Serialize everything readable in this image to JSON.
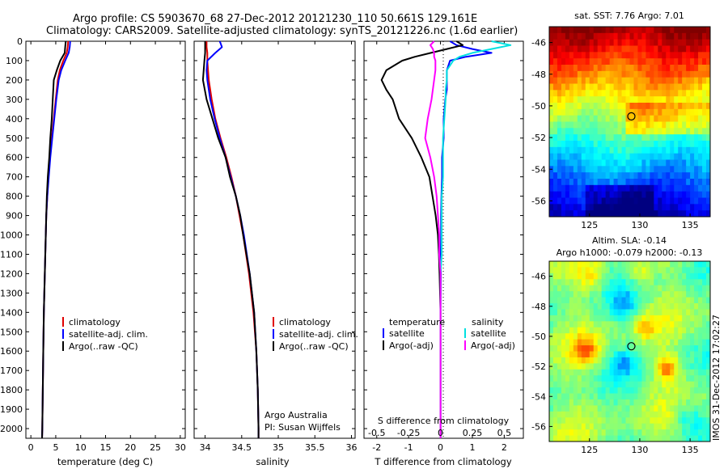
{
  "title_line1": "Argo profile: CS 5903670_68 27-Dec-2012 20121230_110 50.661S 129.161E",
  "title_line2": "Climatology: CARS2009. Satellite-adjusted climatology: synTS_20121226.nc (1.6d earlier)",
  "colors": {
    "climatology": "#e00000",
    "satellite": "#0000ff",
    "argo": "#000000",
    "sal_satellite": "#00e0e0",
    "sal_argo": "#ff00ff"
  },
  "chart_data": [
    {
      "type": "line",
      "panel": "temperature",
      "xlabel": "temperature (deg C)",
      "ylim": [
        2050,
        0
      ],
      "xlim": [
        -1,
        31
      ],
      "xticks": [
        0,
        5,
        10,
        15,
        20,
        25,
        30
      ],
      "yticks": [
        0,
        100,
        200,
        300,
        400,
        500,
        600,
        700,
        800,
        900,
        1000,
        1100,
        1200,
        1300,
        1400,
        1500,
        1600,
        1700,
        1800,
        1900,
        2000
      ],
      "legend": [
        "climatology",
        "satellite-adj. clim.",
        "Argo(..raw -QC)"
      ],
      "depth": [
        0,
        30,
        60,
        100,
        150,
        200,
        300,
        400,
        500,
        600,
        700,
        800,
        900,
        1000,
        1200,
        1400,
        1600,
        1800,
        2000,
        2050
      ],
      "series": [
        {
          "name": "climatology",
          "color_key": "climatology",
          "values": [
            7.5,
            7.4,
            7.2,
            6.5,
            5.8,
            5.4,
            5.0,
            4.6,
            4.2,
            3.8,
            3.5,
            3.3,
            3.1,
            3.0,
            2.8,
            2.6,
            2.5,
            2.4,
            2.3,
            2.25
          ]
        },
        {
          "name": "satellite-adj. clim.",
          "color_key": "satellite",
          "values": [
            7.9,
            7.8,
            7.6,
            6.9,
            6.1,
            5.6,
            5.1,
            4.7,
            4.3,
            3.9,
            3.6,
            3.3,
            3.1,
            3.0,
            2.8,
            2.6,
            2.5,
            2.4,
            2.3,
            2.25
          ]
        },
        {
          "name": "Argo(..raw -QC)",
          "color_key": "argo",
          "values": [
            7.0,
            6.9,
            6.8,
            5.9,
            5.2,
            4.6,
            4.4,
            4.2,
            3.9,
            3.7,
            3.4,
            3.2,
            3.1,
            3.0,
            2.8,
            2.6,
            2.5,
            2.4,
            2.3,
            2.25
          ]
        }
      ]
    },
    {
      "type": "line",
      "panel": "salinity",
      "xlabel": "salinity",
      "ylim": [
        2050,
        0
      ],
      "xlim": [
        33.85,
        36.05
      ],
      "xticks": [
        34,
        34.5,
        35,
        35.5,
        36
      ],
      "xticklabels": [
        "34",
        "34.5",
        "35",
        "35.5",
        "36"
      ],
      "legend": [
        "climatology",
        "satellite-adj. clim.",
        "Argo(..raw -QC)"
      ],
      "annotation1": "Argo Australia",
      "annotation2": "PI: Susan Wijffels",
      "depth": [
        0,
        30,
        60,
        100,
        150,
        200,
        300,
        400,
        500,
        600,
        700,
        800,
        900,
        1000,
        1200,
        1400,
        1600,
        1800,
        2000,
        2050
      ],
      "series": [
        {
          "name": "climatology",
          "color_key": "climatology",
          "values": [
            34.02,
            34.02,
            34.03,
            34.03,
            34.04,
            34.05,
            34.09,
            34.14,
            34.21,
            34.29,
            34.36,
            34.42,
            34.47,
            34.52,
            34.6,
            34.66,
            34.7,
            34.72,
            34.73,
            34.73
          ]
        },
        {
          "name": "satellite-adj. clim.",
          "color_key": "satellite",
          "values": [
            34.2,
            34.23,
            34.14,
            34.03,
            34.02,
            34.03,
            34.07,
            34.13,
            34.2,
            34.28,
            34.35,
            34.42,
            34.48,
            34.53,
            34.61,
            34.67,
            34.7,
            34.72,
            34.73,
            34.73
          ]
        },
        {
          "name": "Argo(..raw -QC)",
          "color_key": "argo",
          "values": [
            34.0,
            34.0,
            34.0,
            33.99,
            33.98,
            33.97,
            34.02,
            34.1,
            34.18,
            34.28,
            34.34,
            34.42,
            34.48,
            34.52,
            34.61,
            34.67,
            34.7,
            34.72,
            34.73,
            34.73
          ]
        }
      ]
    },
    {
      "type": "line",
      "panel": "difference",
      "xlabel_bottom": "T difference from climatology",
      "xlabel_top": "S difference from climatology",
      "xlim": [
        -2.4,
        2.6
      ],
      "xticks_bottom": [
        -2,
        -1,
        0,
        1,
        2
      ],
      "xticks_top": [
        -0.5,
        -0.25,
        0,
        0.25,
        0.5
      ],
      "xticks_top_labels": [
        "-0.5",
        "-0.25",
        "0",
        "0.25",
        "0.5"
      ],
      "legend_left_title": "temperature",
      "legend_right_title": "salinity",
      "legend_left": [
        "satellite",
        "Argo(-adj)"
      ],
      "legend_right": [
        "satellite",
        "Argo(-adj)"
      ],
      "depth": [
        0,
        20,
        40,
        60,
        80,
        100,
        150,
        200,
        250,
        300,
        400,
        500,
        600,
        700,
        800,
        900,
        1000,
        1100,
        1200,
        1400,
        1600,
        1800,
        2000,
        2050
      ],
      "series": [
        {
          "name": "T satellite",
          "color_key": "satellite",
          "values": [
            0.3,
            0.5,
            1.0,
            1.6,
            0.8,
            0.3,
            0.2,
            0.2,
            0.2,
            0.15,
            0.1,
            0.1,
            0.05,
            0.05,
            0.03,
            0.02,
            0.02,
            0.01,
            0.01,
            0.0,
            0.0,
            0.0,
            0.0,
            0.0
          ]
        },
        {
          "name": "T Argo(-adj)",
          "color_key": "argo",
          "values": [
            0.5,
            0.7,
            0.2,
            -0.3,
            -0.8,
            -1.2,
            -1.7,
            -1.85,
            -1.7,
            -1.5,
            -1.3,
            -0.9,
            -0.6,
            -0.35,
            -0.25,
            -0.15,
            -0.08,
            -0.05,
            -0.03,
            0.0,
            0.0,
            0.0,
            0.0,
            0.0
          ]
        },
        {
          "name": "S satellite",
          "color_key": "sal_satellite",
          "values": [
            0.4,
            0.55,
            0.4,
            0.25,
            0.15,
            0.1,
            0.05,
            0.05,
            0.04,
            0.04,
            0.03,
            0.02,
            0.02,
            0.02,
            0.01,
            0.01,
            0.01,
            0.01,
            0.0,
            0.0,
            0.0,
            0.0,
            0.0,
            0.0
          ]
        },
        {
          "name": "S Argo(-adj)",
          "color_key": "sal_argo",
          "values": [
            -0.05,
            -0.08,
            -0.06,
            -0.05,
            -0.05,
            -0.04,
            -0.04,
            -0.05,
            -0.06,
            -0.07,
            -0.1,
            -0.12,
            -0.08,
            -0.05,
            -0.03,
            -0.02,
            -0.01,
            -0.01,
            0.0,
            0.0,
            0.0,
            0.0,
            0.0,
            0.0
          ]
        }
      ]
    },
    {
      "type": "heatmap",
      "panel": "sst_map",
      "title": "sat. SST: 7.76  Argo: 7.01",
      "xlim": [
        121,
        137
      ],
      "ylim": [
        -57,
        -45
      ],
      "xticks": [
        125,
        130,
        135
      ],
      "yticks": [
        -46,
        -48,
        -50,
        -52,
        -54,
        -56
      ],
      "colorscale": "jet",
      "marker": [
        129.161,
        -50.661
      ]
    },
    {
      "type": "heatmap",
      "panel": "sla_map",
      "title_line1": "Altim. SLA: -0.14",
      "title_line2": "Argo h1000: -0.079 h2000: -0.13",
      "xlim": [
        121,
        137
      ],
      "ylim": [
        -57,
        -45
      ],
      "xticks": [
        125,
        130,
        135
      ],
      "yticks": [
        -46,
        -48,
        -50,
        -52,
        -54,
        -56
      ],
      "colorscale": "jet",
      "marker": [
        129.161,
        -50.661
      ]
    }
  ],
  "watermark": "IMOS 31-Dec-2012 17:02:27"
}
